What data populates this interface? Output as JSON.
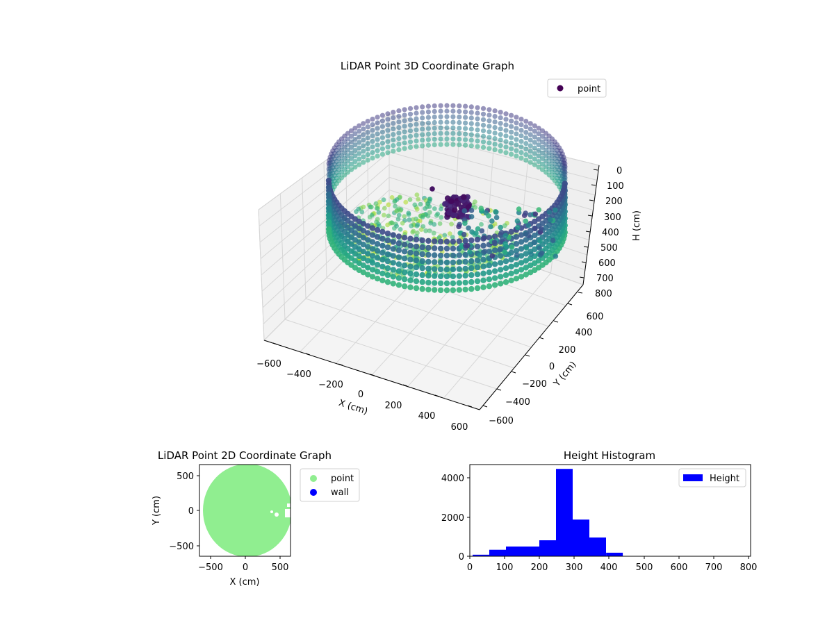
{
  "chart_data": [
    {
      "type": "scatter",
      "projection": "3d",
      "title": "LiDAR Point 3D Coordinate Graph",
      "xlabel": "X (cm)",
      "ylabel": "Y (cm)",
      "zlabel": "H (cm)",
      "x_ticks": [
        "−600",
        "−400",
        "−200",
        "0",
        "200",
        "400",
        "600"
      ],
      "y_ticks": [
        "−600",
        "−400",
        "−200",
        "0",
        "200",
        "400",
        "600"
      ],
      "z_ticks": [
        "0",
        "100",
        "200",
        "300",
        "400",
        "500",
        "600",
        "700",
        "800"
      ],
      "xlim": [
        -650,
        650
      ],
      "ylim": [
        -650,
        650
      ],
      "zlim": [
        0,
        800
      ],
      "z_inverted": true,
      "colormap": "viridis",
      "grid": true,
      "legend": {
        "position": "top-right",
        "entries": [
          {
            "label": "point",
            "color": "#440154"
          }
        ]
      }
    },
    {
      "type": "scatter",
      "title": "LiDAR Point 2D Coordinate Graph",
      "xlabel": "X (cm)",
      "ylabel": "Y (cm)",
      "x_ticks": [
        "−500",
        "0",
        "500"
      ],
      "y_ticks": [
        "500",
        "0",
        "−500"
      ],
      "xlim": [
        -650,
        650
      ],
      "ylim": [
        -650,
        650
      ],
      "legend": {
        "position": "outside-right",
        "entries": [
          {
            "label": "point",
            "color": "#90ee90"
          },
          {
            "label": "wall",
            "color": "#0000ff"
          }
        ]
      }
    },
    {
      "type": "bar",
      "title": "Height Histogram",
      "xlabel": "",
      "ylabel": "",
      "bin_edges": [
        0,
        48.5,
        97,
        145.5,
        194,
        242.5,
        291,
        339.5,
        388,
        436.5,
        485,
        533.5,
        582,
        630.5,
        679,
        727.5,
        776
      ],
      "values": [
        80,
        330,
        500,
        500,
        820,
        4480,
        1880,
        960,
        180,
        0,
        0,
        0,
        0,
        0,
        0,
        0
      ],
      "x_ticks": [
        "0",
        "100",
        "200",
        "300",
        "400",
        "500",
        "600",
        "700",
        "800"
      ],
      "y_ticks": [
        "0",
        "2000",
        "4000"
      ],
      "xlim": [
        -8,
        808
      ],
      "ylim": [
        0,
        4700
      ],
      "bar_color": "#0000ff",
      "legend": {
        "position": "top-right",
        "entries": [
          {
            "label": "Height",
            "color": "#0000ff"
          }
        ]
      }
    }
  ]
}
